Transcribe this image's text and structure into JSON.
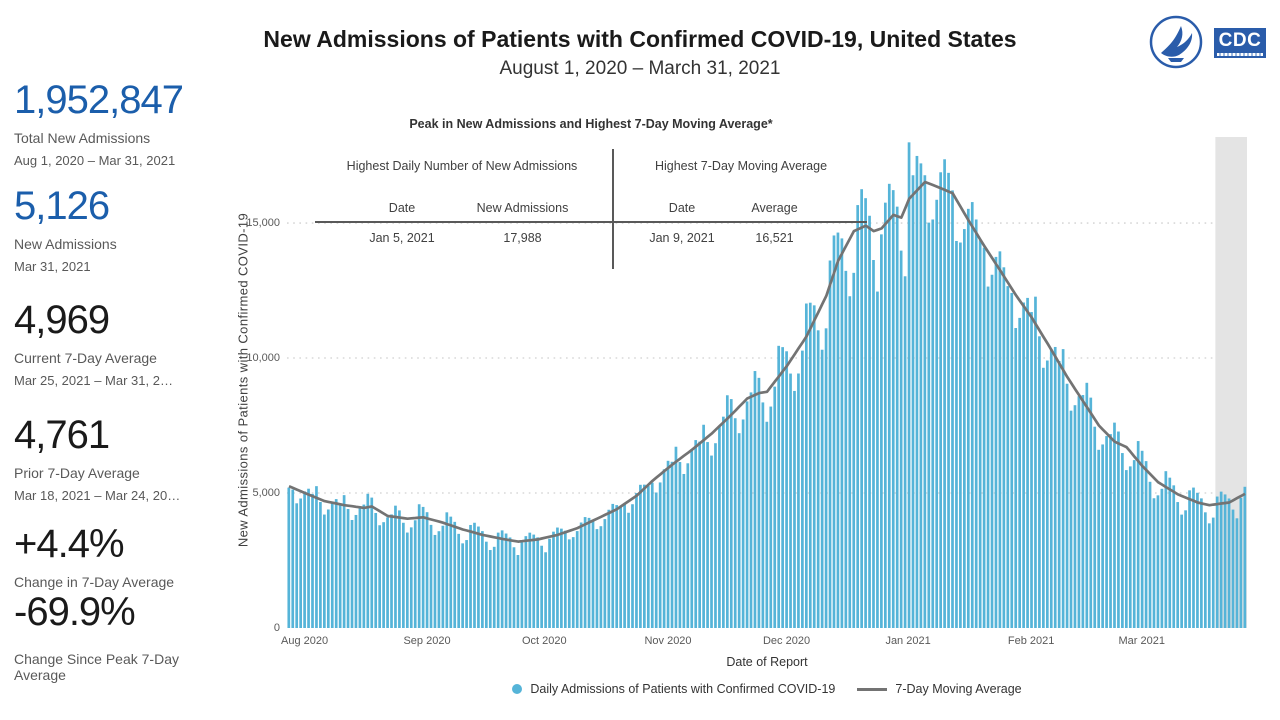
{
  "header": {
    "title": "New Admissions of Patients with Confirmed COVID-19, United States",
    "subtitle": "August 1, 2020 – March 31, 2021",
    "cdc_logo_text": "CDC"
  },
  "stats": [
    {
      "value": "1,952,847",
      "label": "Total New Admissions",
      "sublabel": "Aug 1, 2020 – Mar 31, 2021",
      "color": "blue"
    },
    {
      "value": "5,126",
      "label": "New Admissions",
      "sublabel": "Mar 31, 2021",
      "color": "blue"
    },
    {
      "value": "4,969",
      "label": "Current 7-Day Average",
      "sublabel": "Mar 25, 2021 – Mar 31, 2…",
      "color": "black"
    },
    {
      "value": "4,761",
      "label": "Prior 7-Day Average",
      "sublabel": "Mar 18, 2021 – Mar 24, 20…",
      "color": "black"
    },
    {
      "value": "+4.4%",
      "label": "Change in 7-Day Average",
      "sublabel": "",
      "color": "black"
    },
    {
      "value": "-69.9%",
      "label": "Change Since Peak 7-Day Average",
      "sublabel": "",
      "color": "black"
    }
  ],
  "peak_table": {
    "title": "Peak in New Admissions and Highest 7-Day Moving Average*",
    "left_group_header": "Highest Daily Number of New Admissions",
    "right_group_header": "Highest 7-Day Moving Average",
    "col1": "Date",
    "col2": "New Admissions",
    "col3": "Date",
    "col4": "Average",
    "val1": "Jan 5, 2021",
    "val2": "17,988",
    "val3": "Jan 9, 2021",
    "val4": "16,521"
  },
  "chart_data": {
    "type": "bar",
    "title": "",
    "xlabel": "Date of Report",
    "ylabel": "New Admissions of Patients with  Confirmed COVID-19",
    "date_range": [
      "Aug 1, 2020",
      "Mar 31, 2021"
    ],
    "days_total": 243,
    "x_tick_labels": [
      "Aug 2020",
      "Sep 2020",
      "Oct 2020",
      "Nov 2020",
      "Dec 2020",
      "Jan 2021",
      "Feb 2021",
      "Mar 2021"
    ],
    "month_start_days": [
      0,
      31,
      61,
      92,
      122,
      153,
      184,
      212
    ],
    "y_ticks": [
      {
        "label": "0",
        "value": 0
      },
      {
        "label": "5,000",
        "value": 5000
      },
      {
        "label": "10,000",
        "value": 10000
      },
      {
        "label": "15,000",
        "value": 15000
      }
    ],
    "ylim": [
      0,
      18260
    ],
    "grid": "dotted-horizontal",
    "series": [
      {
        "name": "Daily Admissions of Patients with Confirmed COVID-19",
        "type": "bar"
      },
      {
        "name": "7-Day Moving Average",
        "type": "line"
      }
    ],
    "moving_average_anchors": [
      [
        0,
        5250
      ],
      [
        4,
        5000
      ],
      [
        9,
        4700
      ],
      [
        14,
        4550
      ],
      [
        19,
        4450
      ],
      [
        21,
        4500
      ],
      [
        25,
        4150
      ],
      [
        30,
        4050
      ],
      [
        34,
        4100
      ],
      [
        39,
        3900
      ],
      [
        44,
        3650
      ],
      [
        49,
        3450
      ],
      [
        54,
        3300
      ],
      [
        58,
        3200
      ],
      [
        63,
        3280
      ],
      [
        68,
        3450
      ],
      [
        73,
        3700
      ],
      [
        78,
        4050
      ],
      [
        83,
        4400
      ],
      [
        88,
        4900
      ],
      [
        92,
        5450
      ],
      [
        97,
        6050
      ],
      [
        102,
        6600
      ],
      [
        107,
        7200
      ],
      [
        112,
        7900
      ],
      [
        116,
        8500
      ],
      [
        119,
        8700
      ],
      [
        121,
        8750
      ],
      [
        126,
        9700
      ],
      [
        131,
        10800
      ],
      [
        136,
        12300
      ],
      [
        139,
        13600
      ],
      [
        143,
        14700
      ],
      [
        146,
        14900
      ],
      [
        148,
        14700
      ],
      [
        150,
        14800
      ],
      [
        153,
        15300
      ],
      [
        155,
        15200
      ],
      [
        157,
        15900
      ],
      [
        161,
        16521
      ],
      [
        164,
        16350
      ],
      [
        168,
        16100
      ],
      [
        172,
        15100
      ],
      [
        176,
        14150
      ],
      [
        180,
        13250
      ],
      [
        184,
        12330
      ],
      [
        188,
        11500
      ],
      [
        193,
        10300
      ],
      [
        197,
        9300
      ],
      [
        201,
        8400
      ],
      [
        205,
        7500
      ],
      [
        209,
        6900
      ],
      [
        212,
        6700
      ],
      [
        216,
        6000
      ],
      [
        220,
        5400
      ],
      [
        225,
        4950
      ],
      [
        230,
        4650
      ],
      [
        233,
        4550
      ],
      [
        238,
        4650
      ],
      [
        242,
        4969
      ]
    ],
    "weekday_factors": [
      1.04,
      0.95,
      0.88,
      0.94,
      1.02,
      1.07,
      1.06
    ],
    "daily_overrides": {
      "157": 17988
    },
    "recent_band": {
      "start_day": 235,
      "end_day": 243
    },
    "annotations": {
      "highest_daily": {
        "date": "Jan 5, 2021",
        "value": 17988
      },
      "highest_moving_average": {
        "date": "Jan 9, 2021",
        "value": 16521
      }
    },
    "colors": {
      "bar": "#55B4D8",
      "line": "#737373",
      "grid": "#D8D8D8",
      "band": "#E4E4E4",
      "accent_blue": "#1B5EAB"
    }
  },
  "legend": [
    {
      "swatch": "dot",
      "label": "Daily Admissions of Patients with Confirmed COVID-19"
    },
    {
      "swatch": "line",
      "label": "7-Day Moving Average"
    }
  ]
}
